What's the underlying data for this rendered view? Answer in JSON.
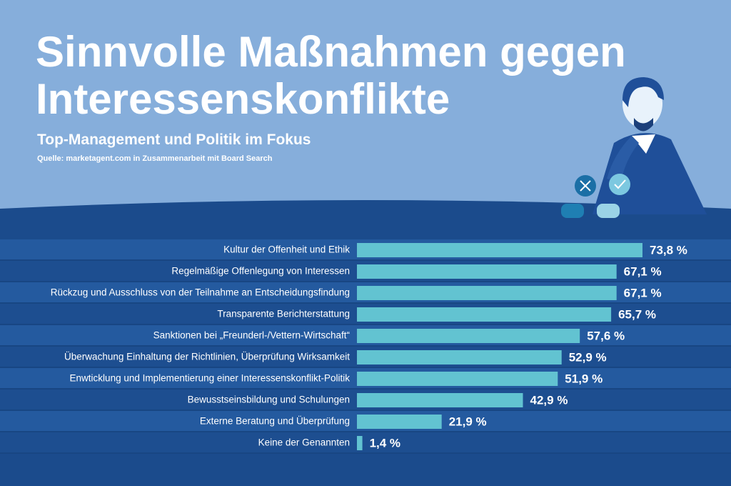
{
  "chart_data": {
    "type": "bar",
    "orientation": "horizontal",
    "title": "Sinnvolle Maßnahmen gegen Interessenskonflikte",
    "subtitle": "Top-Management und Politik im Fokus",
    "source": "Quelle: marketagent.com in Zusammenarbeit mit Board Search",
    "color": "#62c3d1",
    "categories": [
      "Kultur der Offenheit und Ethik",
      "Regelmäßige Offenlegung von Interessen",
      "Rückzug und Ausschluss von der Teilnahme an Entscheidungsfindung",
      "Transparente Berichterstattung",
      "Sanktionen bei „Freunderl-/Vettern-Wirtschaft“",
      "Überwachung Einhaltung der Richtlinien, Überprüfung Wirksamkeit",
      "Enwticklung und Implementierung einer Interessenskonflikt-Politik",
      "Bewusstseinsbildung und Schulungen",
      "Externe Beratung und Überprüfung",
      "Keine der Genannten"
    ],
    "values": [
      73.8,
      67.1,
      67.1,
      65.7,
      57.6,
      52.9,
      51.9,
      42.9,
      21.9,
      1.4
    ],
    "value_labels": [
      "73,8 %",
      "67,1 %",
      "67,1 %",
      "65,7 %",
      "57,6 %",
      "52,9 %",
      "51,9 %",
      "42,9 %",
      "21,9 %",
      "1,4 %"
    ]
  }
}
